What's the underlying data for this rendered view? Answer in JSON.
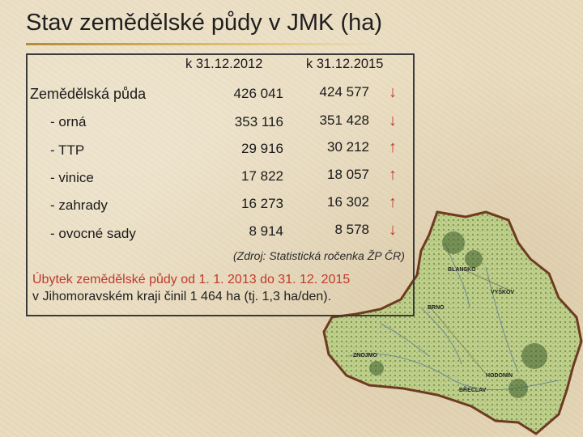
{
  "title": "Stav zemědělské půdy v JMK (ha)",
  "table": {
    "columns": [
      "k 31.12.2012",
      "k 31.12.2015"
    ],
    "rows": [
      {
        "label": "Zemědělská půda",
        "v2012": "426 041",
        "v2015": "424 577",
        "trend": "↓"
      },
      {
        "label": "- orná",
        "v2012": "353 116",
        "v2015": "351 428",
        "trend": "↓"
      },
      {
        "label": "- TTP",
        "v2012": "29 916",
        "v2015": "30 212",
        "trend": "↑"
      },
      {
        "label": "- vinice",
        "v2012": "17 822",
        "v2015": "18 057",
        "trend": "↑"
      },
      {
        "label": "- zahrady",
        "v2012": "16 273",
        "v2015": "16 302",
        "trend": "↑"
      },
      {
        "label": "- ovocné sady",
        "v2012": "8 914",
        "v2015": "8 578",
        "trend": "↓"
      }
    ]
  },
  "source": "(Zdroj: Statistická ročenka ŽP ČR)",
  "note": {
    "line1": "Úbytek zemědělské půdy od 1. 1. 2013 do 31. 12. 2015",
    "line2": "v Jihomoravském kraji činil 1 464 ha (tj. 1,3 ha/den)."
  },
  "map": {
    "labels": [
      "BLANSKO",
      "VYŠKOV",
      "BRNO",
      "ZNOJMO",
      "HODONÍN",
      "BŘECLAV"
    ]
  },
  "colors": {
    "trend": "#c0392b",
    "map_fill": "#b9c98a",
    "map_border": "#6e3b22"
  }
}
